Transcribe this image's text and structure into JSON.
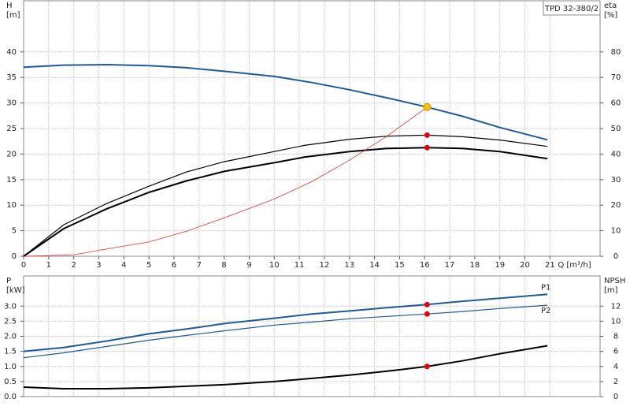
{
  "chart_data": [
    {
      "type": "line",
      "model": "TPD 32-380/2",
      "ylabel": "H",
      "yunit": "[m]",
      "y2label": "eta",
      "y2unit": "[%]",
      "xlabel": "Q [m³/h]",
      "xlim": [
        0,
        23
      ],
      "xticks": [
        0,
        1,
        2,
        3,
        4,
        5,
        6,
        7,
        8,
        9,
        10,
        11,
        12,
        13,
        14,
        15,
        16,
        17,
        18,
        19,
        20,
        21
      ],
      "xtick_labels": true,
      "ylim": [
        0,
        50
      ],
      "yticks": [
        0,
        5,
        10,
        15,
        20,
        25,
        30,
        35,
        40
      ],
      "y2lim": [
        0,
        100
      ],
      "y2ticks": [
        0,
        10,
        20,
        30,
        40,
        50,
        60,
        70,
        80
      ],
      "grid": true,
      "series": [
        {
          "color": "#1f5a99",
          "width": 2,
          "axis": "y",
          "x": [
            0,
            1.6,
            3.3,
            5,
            6.5,
            8,
            10,
            11.5,
            13,
            14.5,
            16.1,
            17.5,
            19,
            20.9
          ],
          "values": [
            37,
            37.4,
            37.5,
            37.3,
            36.9,
            36.2,
            35.2,
            34,
            32.6,
            31,
            29.2,
            27.4,
            25.2,
            22.8
          ]
        },
        {
          "color": "#000000",
          "width": 1.2,
          "axis": "y2",
          "x": [
            0,
            1.6,
            3.3,
            5,
            6.5,
            8,
            10,
            11.2,
            13,
            14.5,
            16.1,
            17.5,
            19,
            20.9
          ],
          "values": [
            0,
            12.3,
            20.6,
            27.4,
            33,
            37,
            41,
            43.4,
            45.8,
            47,
            47.4,
            46.8,
            45.5,
            43
          ]
        },
        {
          "color": "#000000",
          "width": 2,
          "axis": "y2",
          "x": [
            0,
            1.6,
            3.3,
            5,
            6.5,
            8,
            10,
            11.2,
            13,
            14.5,
            16.1,
            17.5,
            19,
            20.9
          ],
          "values": [
            0,
            10.8,
            18.5,
            25,
            29.5,
            33.2,
            36.6,
            38.8,
            41,
            42.2,
            42.5,
            42.2,
            41,
            38.2
          ]
        },
        {
          "color": "#e8302a",
          "width": 0.8,
          "axis": "y",
          "x": [
            0,
            2,
            3.3,
            5,
            6.5,
            8,
            10,
            11.5,
            13,
            14.5,
            16.1
          ],
          "values": [
            0,
            0.3,
            1.4,
            2.8,
            4.9,
            7.5,
            11.2,
            14.6,
            18.8,
            23.5,
            29.2
          ]
        }
      ],
      "markers": [
        {
          "x": 16.1,
          "y": 29.2,
          "axis": "y",
          "color": "#f5c400"
        },
        {
          "x": 16.1,
          "y": 47.4,
          "axis": "y2",
          "color": "#e8000b"
        },
        {
          "x": 16.1,
          "y": 42.5,
          "axis": "y2",
          "color": "#e8000b"
        }
      ]
    },
    {
      "type": "line",
      "ylabel": "P",
      "yunit": "[kW]",
      "y2label": "NPSH",
      "y2unit": "[m]",
      "xlim": [
        0,
        23
      ],
      "xticks": [
        0,
        1,
        2,
        3,
        4,
        5,
        6,
        7,
        8,
        9,
        10,
        11,
        12,
        13,
        14,
        15,
        16,
        17,
        18,
        19,
        20,
        21
      ],
      "xtick_labels": false,
      "ylim": [
        0,
        4
      ],
      "yticks": [
        {
          "value": 0,
          "label": "0.0"
        },
        0.5,
        {
          "value": 1,
          "label": "1.0"
        },
        1.5,
        {
          "value": 2,
          "label": "2.0"
        },
        2.5,
        {
          "value": 3,
          "label": "3.0"
        }
      ],
      "y2lim": [
        0,
        16
      ],
      "y2ticks": [
        0,
        2,
        4,
        6,
        8,
        10,
        12
      ],
      "grid": true,
      "series": [
        {
          "name": "P1",
          "color": "#1f5a99",
          "width": 2,
          "axis": "y",
          "x": [
            0,
            1.6,
            3.3,
            5,
            6.5,
            8,
            10,
            11.5,
            13,
            14.5,
            16.1,
            17.5,
            19,
            20.9
          ],
          "values": [
            1.5,
            1.63,
            1.84,
            2.08,
            2.24,
            2.42,
            2.6,
            2.74,
            2.84,
            2.95,
            3.05,
            3.16,
            3.26,
            3.39
          ]
        },
        {
          "name": "P2",
          "color": "#1f5a99",
          "width": 1.2,
          "axis": "y",
          "x": [
            0,
            1.6,
            3.3,
            5,
            6.5,
            8,
            10,
            11.5,
            13,
            14.5,
            16.1,
            17.5,
            19,
            20.9
          ],
          "values": [
            1.29,
            1.45,
            1.66,
            1.87,
            2.03,
            2.18,
            2.37,
            2.47,
            2.58,
            2.66,
            2.74,
            2.82,
            2.92,
            3.03
          ]
        },
        {
          "color": "#000000",
          "width": 2,
          "axis": "y2",
          "x": [
            0,
            1.6,
            3.3,
            5,
            6.5,
            8,
            10,
            11.5,
            13,
            14.5,
            16.1,
            17.5,
            19,
            20.9
          ],
          "values": [
            1.26,
            1.05,
            1.05,
            1.16,
            1.37,
            1.58,
            2,
            2.42,
            2.84,
            3.37,
            4,
            4.74,
            5.68,
            6.74
          ]
        }
      ],
      "markers": [
        {
          "x": 16.1,
          "y": 3.05,
          "axis": "y",
          "color": "#e8000b"
        },
        {
          "x": 16.1,
          "y": 2.74,
          "axis": "y",
          "color": "#e8000b"
        },
        {
          "x": 16.1,
          "y": 4,
          "axis": "y2",
          "color": "#e8000b"
        }
      ]
    }
  ]
}
